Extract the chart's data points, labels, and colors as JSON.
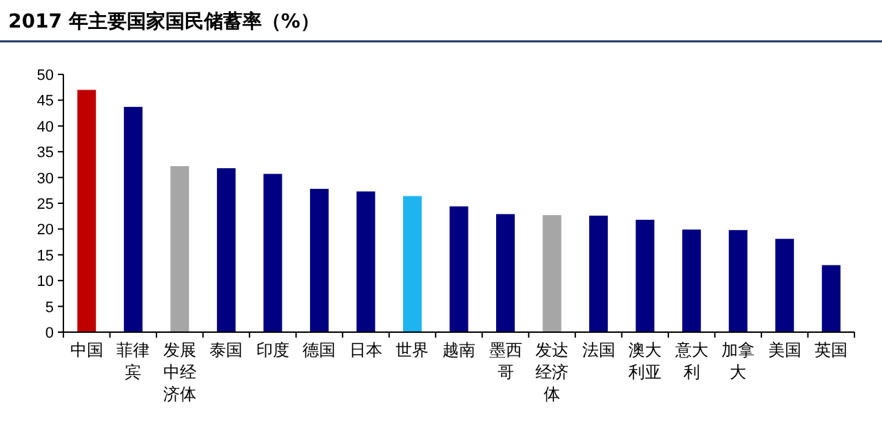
{
  "chart_data": {
    "type": "bar",
    "title": "2017 年主要国家国民储蓄率（%）",
    "categories": [
      "中国",
      "菲律宾",
      "发展中经济体",
      "泰国",
      "印度",
      "德国",
      "日本",
      "世界",
      "越南",
      "墨西哥",
      "发达经济体",
      "法国",
      "澳大利亚",
      "意大利",
      "加拿大",
      "美国",
      "英国"
    ],
    "values": [
      47.0,
      43.7,
      32.2,
      31.8,
      30.7,
      27.8,
      27.3,
      26.4,
      24.4,
      22.9,
      22.7,
      22.6,
      21.8,
      19.9,
      19.8,
      18.1,
      13.0
    ],
    "colors": [
      "#c00000",
      "#000080",
      "#a6a6a6",
      "#000080",
      "#000080",
      "#000080",
      "#000080",
      "#1eb4f0",
      "#000080",
      "#000080",
      "#a6a6a6",
      "#000080",
      "#000080",
      "#000080",
      "#000080",
      "#000080",
      "#000080"
    ],
    "ylim": [
      0,
      50
    ],
    "yticks": [
      0,
      5,
      10,
      15,
      20,
      25,
      30,
      35,
      40,
      45,
      50
    ]
  }
}
